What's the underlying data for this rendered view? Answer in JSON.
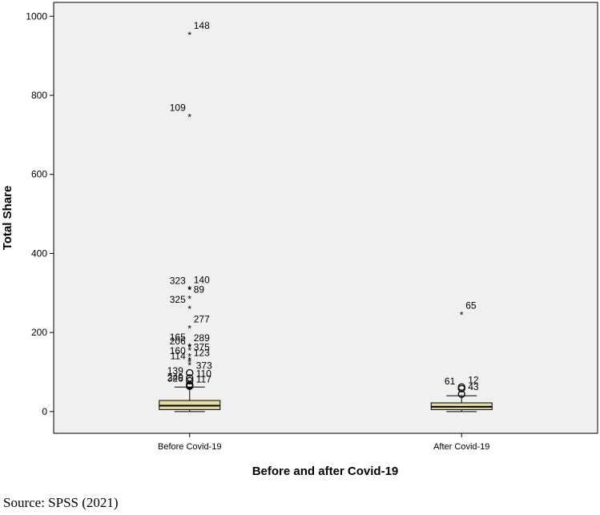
{
  "source_note": "Source: SPSS (2021)",
  "colors": {
    "plot_bg": "#f0f0f0",
    "box_fill": "#e3dca5",
    "stroke": "#000000"
  },
  "chart_data": {
    "type": "boxplot",
    "xlabel": "Before and after Covid-19",
    "ylabel": "Total Share",
    "ylim": [
      -55,
      1035
    ],
    "yticks": [
      0,
      200,
      400,
      600,
      800,
      1000
    ],
    "grid": false,
    "categories": [
      "Before Covid-19",
      "After Covid-19"
    ],
    "boxes": [
      {
        "category": "Before Covid-19",
        "whisker_low": 0,
        "q1": 5,
        "median": 15,
        "q3": 28,
        "whisker_high": 62,
        "extremes": [
          {
            "label": "148",
            "value": 958
          },
          {
            "label": "109",
            "value": 750
          },
          {
            "label": "140",
            "value": 315
          },
          {
            "label": "323",
            "value": 313
          },
          {
            "label": "89",
            "value": 290
          },
          {
            "label": "325",
            "value": 265
          },
          {
            "label": "277",
            "value": 215
          },
          {
            "label": "165",
            "value": 170
          },
          {
            "label": "289",
            "value": 168
          },
          {
            "label": "206",
            "value": 160
          },
          {
            "label": "375",
            "value": 145
          },
          {
            "label": "160",
            "value": 135
          },
          {
            "label": "123",
            "value": 130
          },
          {
            "label": "114",
            "value": 122
          }
        ],
        "outliers": [
          {
            "label": "373",
            "value": 98
          },
          {
            "label": "139",
            "value": 85
          },
          {
            "label": "110",
            "value": 78
          },
          {
            "label": "249",
            "value": 68
          },
          {
            "label": "117",
            "value": 64
          },
          {
            "label": "326",
            "value": 66
          }
        ]
      },
      {
        "category": "After Covid-19",
        "whisker_low": 0,
        "q1": 5,
        "median": 12,
        "q3": 22,
        "whisker_high": 40,
        "extremes": [
          {
            "label": "65",
            "value": 250
          }
        ],
        "outliers": [
          {
            "label": "12",
            "value": 62
          },
          {
            "label": "61",
            "value": 58
          },
          {
            "label": "43",
            "value": 44
          }
        ]
      }
    ]
  }
}
